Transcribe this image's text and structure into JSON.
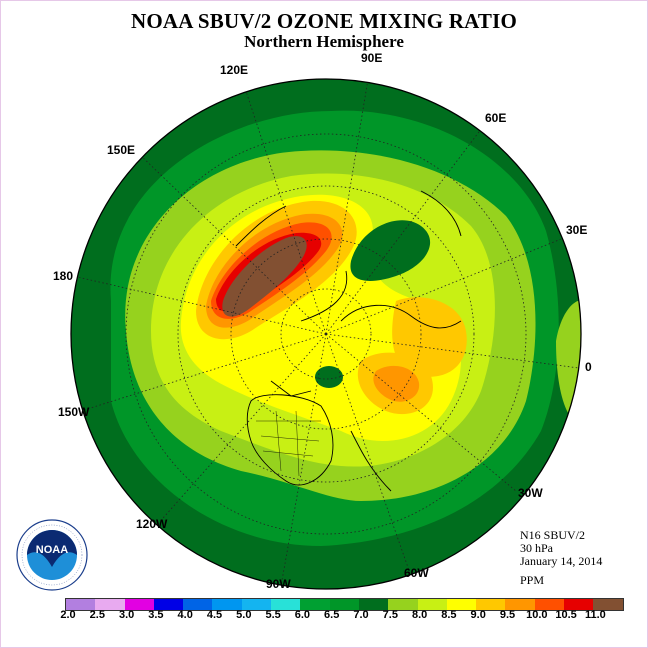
{
  "title": "NOAA SBUV/2 OZONE MIXING RATIO",
  "subtitle": "Northern Hemisphere",
  "longitude_labels": {
    "e90": "90E",
    "e60": "60E",
    "e30": "30E",
    "e0": "0",
    "w30": "30W",
    "w60": "60W",
    "w90": "90W",
    "w120": "120W",
    "w150": "150W",
    "d180": "180",
    "e150": "150E",
    "e120": "120E"
  },
  "info": {
    "satellite": "N16 SBUV/2",
    "level": "30 hPa",
    "date": "January 14, 2014",
    "units": "PPM"
  },
  "logo": {
    "text": "NOAA",
    "ring_text": "NATIONAL OCEANIC AND ATMOSPHERIC ADMINISTRATION · U.S. DEPARTMENT OF COMMERCE"
  },
  "colorbar": {
    "ticks": [
      "2.0",
      "2.5",
      "3.0",
      "3.5",
      "4.0",
      "4.5",
      "5.0",
      "5.5",
      "6.0",
      "6.5",
      "7.0",
      "7.5",
      "8.0",
      "8.5",
      "9.0",
      "9.5",
      "10.0",
      "10.5",
      "11.0"
    ],
    "colors": [
      "#b27fe0",
      "#e8aaf0",
      "#e200e2",
      "#0000e6",
      "#0064e6",
      "#0096f0",
      "#14b4f0",
      "#28e1d8",
      "#00a032",
      "#009628",
      "#006e1e",
      "#96d21e",
      "#c8f014",
      "#ffff00",
      "#ffc800",
      "#ff9600",
      "#ff5000",
      "#e60000",
      "#825032"
    ]
  }
}
